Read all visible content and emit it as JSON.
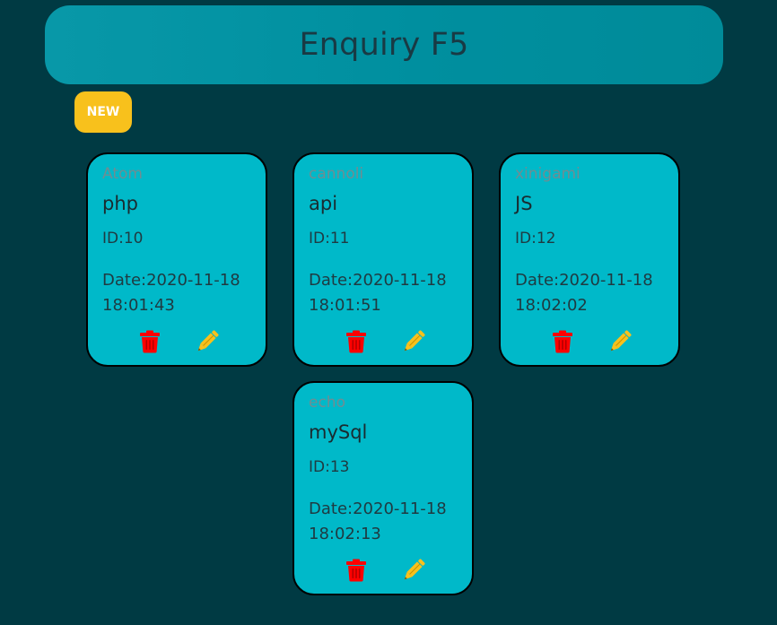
{
  "header": {
    "title": "Enquiry F5"
  },
  "toolbar": {
    "new_label": "NEW"
  },
  "cards": [
    {
      "author": "Atom",
      "title": "php",
      "id": "ID:10",
      "date": "Date:2020-11-18 18:01:43"
    },
    {
      "author": "cannoli",
      "title": "api",
      "id": "ID:11",
      "date": "Date:2020-11-18 18:01:51"
    },
    {
      "author": "xinigami",
      "title": "JS",
      "id": "ID:12",
      "date": "Date:2020-11-18 18:02:02"
    },
    {
      "author": "echo",
      "title": "mySql",
      "id": "ID:13",
      "date": "Date:2020-11-18 18:02:13"
    }
  ],
  "icons": {
    "delete": "trash-icon",
    "edit": "pencil-icon"
  },
  "colors": {
    "background": "#003a43",
    "header": "#0898a8",
    "card": "#00b9c9",
    "new_button": "#f8c11c",
    "delete_icon": "#ff0000",
    "edit_icon": "#f8c11c"
  }
}
